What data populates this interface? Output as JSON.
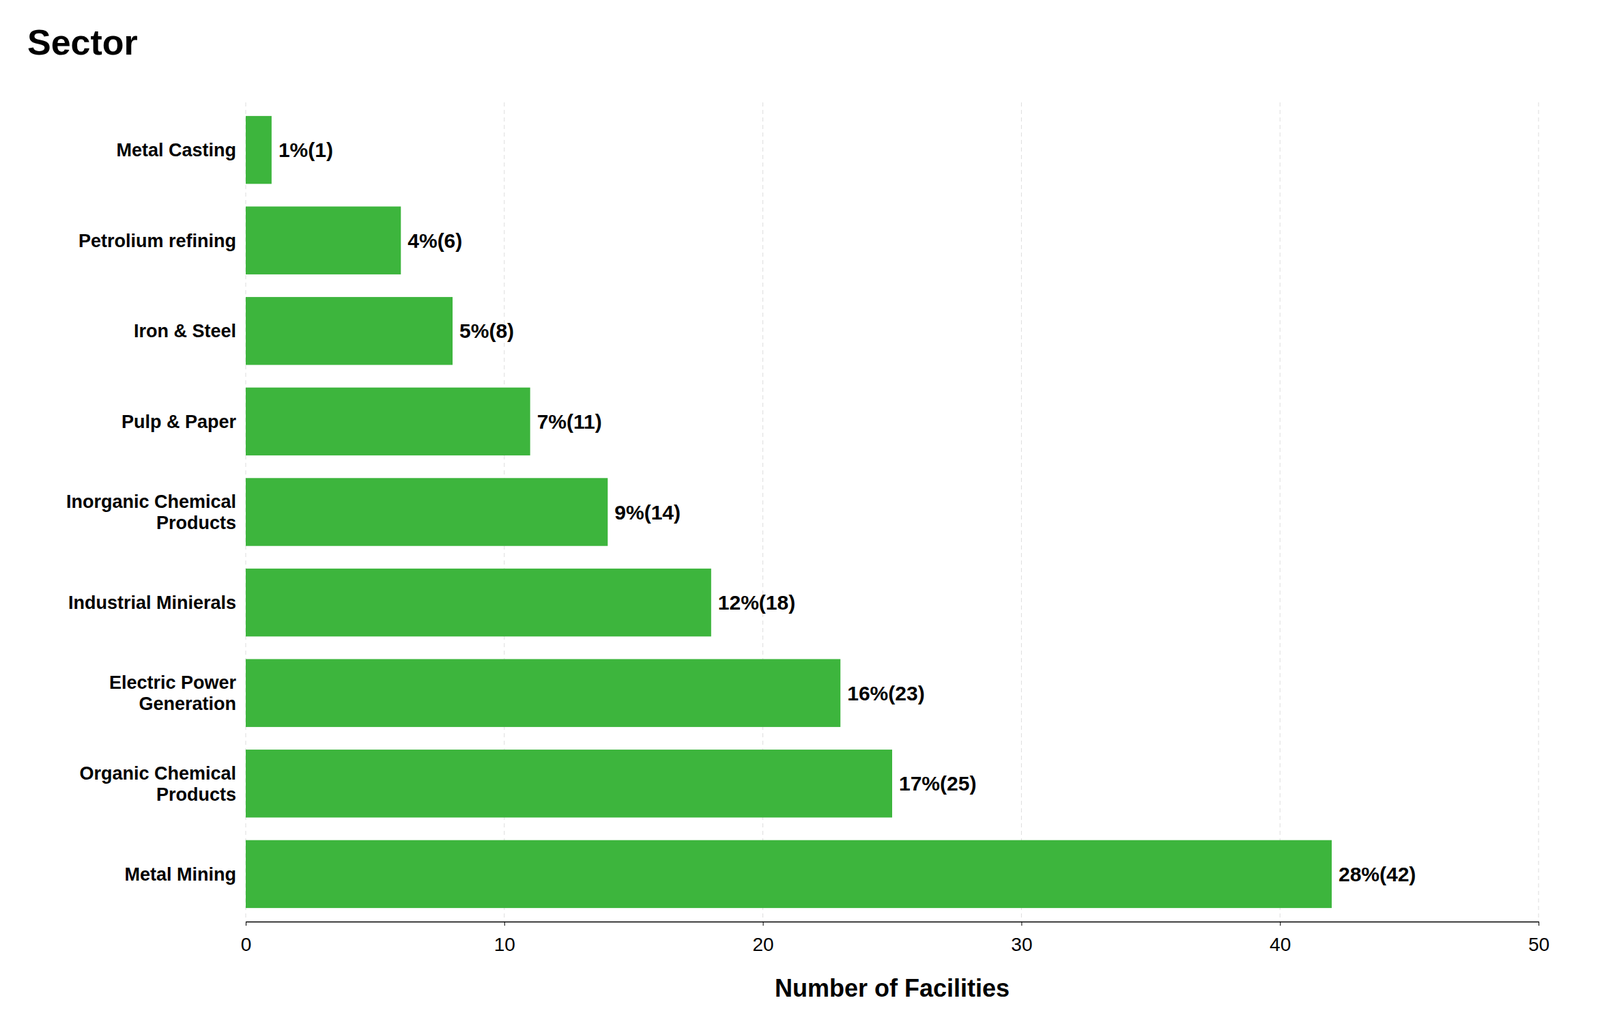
{
  "chart_data": {
    "type": "bar",
    "orientation": "horizontal",
    "title": "Sector",
    "xlabel": "Number of Facilities",
    "categories": [
      "Metal Casting",
      "Petrolium refining",
      "Iron & Steel",
      "Pulp & Paper",
      "Inorganic Chemical\nProducts",
      "Industrial Minierals",
      "Electric Power\nGeneration",
      "Organic Chemical\nProducts",
      "Metal Mining"
    ],
    "values": [
      1,
      6,
      8,
      11,
      14,
      18,
      23,
      25,
      42
    ],
    "value_labels": [
      "1%(1)",
      "4%(6)",
      "5%(8)",
      "7%(11)",
      "9%(14)",
      "12%(18)",
      "16%(23)",
      "17%(25)",
      "28%(42)"
    ],
    "color": "#3db53d",
    "xlim": [
      0,
      50
    ],
    "xticks": [
      0,
      10,
      20,
      30,
      40,
      50
    ],
    "grid": true
  }
}
